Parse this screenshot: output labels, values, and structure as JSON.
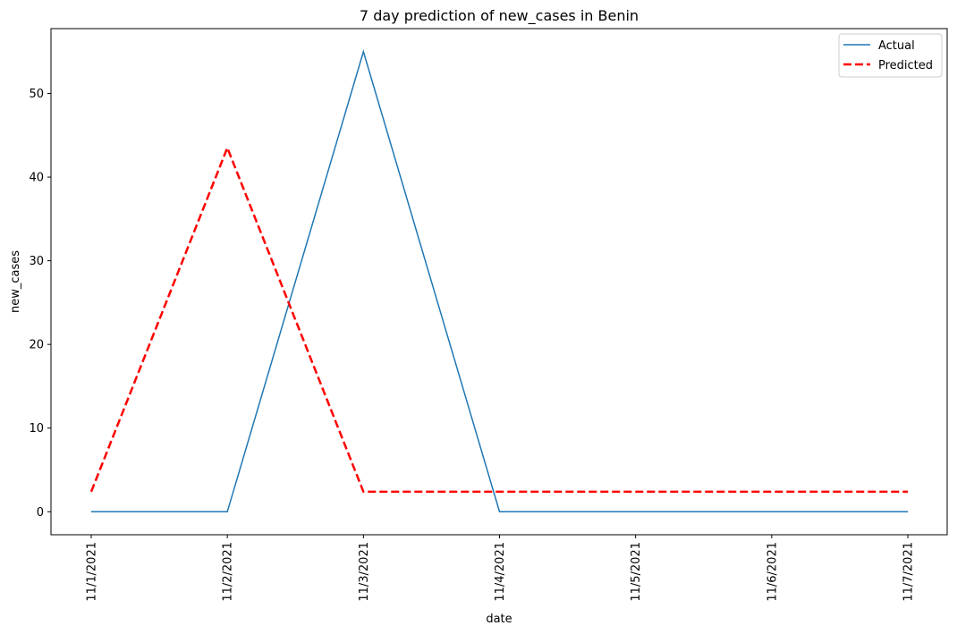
{
  "chart_data": {
    "type": "line",
    "title": "7 day prediction of new_cases in Benin",
    "xlabel": "date",
    "ylabel": "new_cases",
    "categories": [
      "11/1/2021",
      "11/2/2021",
      "11/3/2021",
      "11/4/2021",
      "11/5/2021",
      "11/6/2021",
      "11/7/2021"
    ],
    "ylim": [
      -2.75,
      57.75
    ],
    "yticks": [
      0,
      10,
      20,
      30,
      40,
      50
    ],
    "grid": false,
    "legend_position": "top-right",
    "series": [
      {
        "name": "Actual",
        "values": [
          0,
          0,
          55,
          0,
          0,
          0,
          0
        ],
        "color": "#1f77b4",
        "style": "solid"
      },
      {
        "name": "Predicted",
        "values": [
          2.4,
          43.5,
          2.4,
          2.4,
          2.4,
          2.4,
          2.4
        ],
        "color": "#ff0000",
        "style": "dashed"
      }
    ]
  }
}
